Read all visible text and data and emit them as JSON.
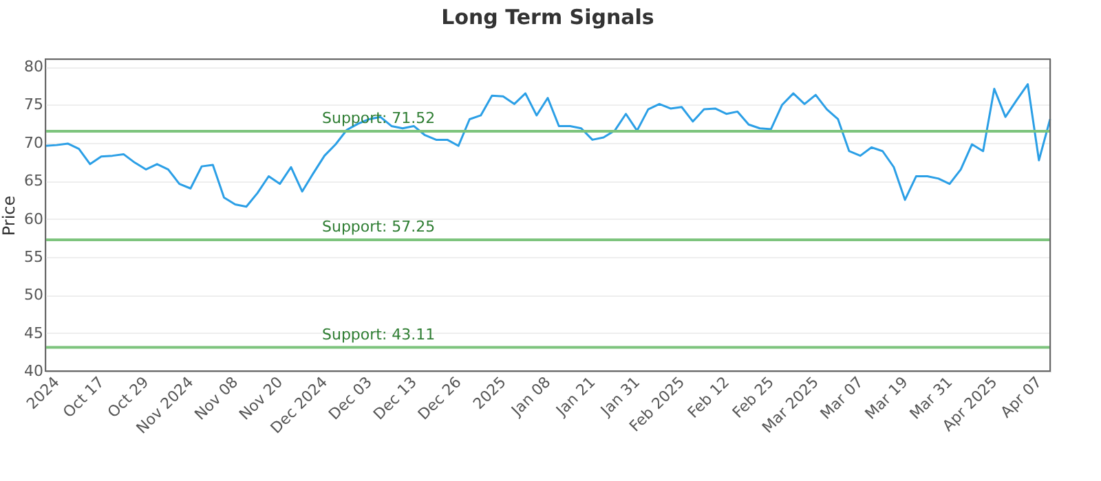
{
  "chart_data": {
    "type": "line",
    "title": "Long Term Signals",
    "ylabel": "Price",
    "categories": [
      null,
      "2024",
      null,
      null,
      null,
      "Oct 17",
      null,
      null,
      null,
      "Oct 29",
      null,
      null,
      null,
      "Nov 2024",
      null,
      null,
      null,
      "Nov 08",
      null,
      null,
      null,
      "Nov 20",
      null,
      null,
      null,
      "Dec 2024",
      null,
      null,
      null,
      "Dec 03",
      null,
      null,
      null,
      "Dec 13",
      null,
      null,
      null,
      "Dec 26",
      null,
      null,
      null,
      "2025",
      null,
      null,
      null,
      "Jan 08",
      null,
      null,
      null,
      "Jan 21",
      null,
      null,
      null,
      "Jan 31",
      null,
      null,
      null,
      "Feb 2025",
      null,
      null,
      null,
      "Feb 12",
      null,
      null,
      null,
      "Feb 25",
      null,
      null,
      null,
      "Mar 2025",
      null,
      null,
      null,
      "Mar 07",
      null,
      null,
      null,
      "Mar 19",
      null,
      null,
      null,
      "Mar 31",
      null,
      null,
      null,
      "Apr 2025",
      null,
      null,
      null,
      "Apr 07",
      null
    ],
    "series": [
      {
        "color": "#2b9fe6",
        "values": [
          69.6,
          69.7,
          69.9,
          69.2,
          67.2,
          68.2,
          68.3,
          68.5,
          67.4,
          66.5,
          67.2,
          66.5,
          64.6,
          64.0,
          66.9,
          67.1,
          62.8,
          61.9,
          61.6,
          63.4,
          65.6,
          64.6,
          66.8,
          63.6,
          66.0,
          68.3,
          69.8,
          71.7,
          72.5,
          73.1,
          73.4,
          72.2,
          71.9,
          72.2,
          71.0,
          70.4,
          70.4,
          69.6,
          73.1,
          73.6,
          76.2,
          76.1,
          75.1,
          76.5,
          73.6,
          75.9,
          72.2,
          72.2,
          71.9,
          70.4,
          70.7,
          71.6,
          73.8,
          71.6,
          74.4,
          75.1,
          74.5,
          74.7,
          72.8,
          74.4,
          74.5,
          73.8,
          74.1,
          72.4,
          71.9,
          71.8,
          75.0,
          76.5,
          75.1,
          76.3,
          74.4,
          73.1,
          68.9,
          68.3,
          69.4,
          68.9,
          66.8,
          62.5,
          65.6,
          65.6,
          65.3,
          64.6,
          66.5,
          69.8,
          68.9,
          77.1,
          73.4,
          75.6,
          77.7,
          67.7,
          73.1
        ]
      }
    ],
    "ylim": [
      40,
      81
    ],
    "yticks": [
      40,
      45,
      50,
      55,
      60,
      65,
      70,
      75,
      80
    ],
    "grid": "y",
    "marker": "none",
    "line_style": "solid",
    "ref_lines": [
      {
        "axis": "y",
        "value": 71.52,
        "label": "Support: 71.52",
        "color": "#7dc47d"
      },
      {
        "axis": "y",
        "value": 57.25,
        "label": "Support: 57.25",
        "color": "#7dc47d"
      },
      {
        "axis": "y",
        "value": 43.11,
        "label": "Support: 43.11",
        "color": "#7dc47d"
      }
    ]
  }
}
